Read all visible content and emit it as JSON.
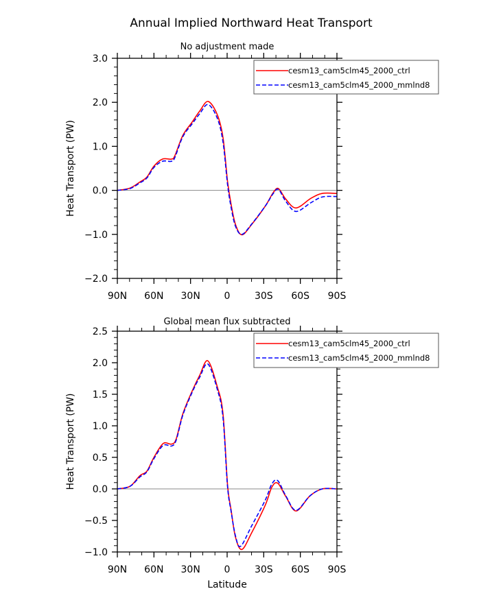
{
  "title": "Annual Implied Northward Heat Transport",
  "chart_data": [
    {
      "type": "line",
      "subtitle": "No adjustment made",
      "xlabel": "",
      "ylabel": "Heat Transport (PW)",
      "xlim": [
        90,
        -90
      ],
      "ylim": [
        -2.0,
        3.0
      ],
      "xticks": [
        90,
        60,
        30,
        0,
        -30,
        -60,
        -90
      ],
      "xtick_labels": [
        "90N",
        "60N",
        "30N",
        "0",
        "30S",
        "60S",
        "90S"
      ],
      "yticks": [
        -2.0,
        -1.0,
        0.0,
        1.0,
        2.0,
        3.0
      ],
      "ytick_labels": [
        "−2.0",
        "−1.0",
        "0.0",
        "1.0",
        "2.0",
        "3.0"
      ],
      "zero_line": true,
      "legend": "top-right",
      "series": [
        {
          "name": "cesm13_cam5clm45_2000_ctrl",
          "color": "#ff0000",
          "style": "solid",
          "x": [
            90,
            79.7,
            71.5,
            65.8,
            60,
            53,
            45.6,
            42.8,
            36.3,
            28.7,
            22.5,
            15.6,
            8.1,
            3.4,
            -0.3,
            -3.2,
            -6.9,
            -12.1,
            -20,
            -31.2,
            -37.8,
            -42.1,
            -48.1,
            -56.5,
            -68.7,
            -78,
            -90
          ],
          "y": [
            0,
            0.05,
            0.19,
            0.3,
            0.55,
            0.71,
            0.71,
            0.79,
            1.25,
            1.55,
            1.8,
            2.02,
            1.72,
            1.2,
            0.21,
            -0.31,
            -0.78,
            -1.01,
            -0.78,
            -0.36,
            -0.05,
            0.04,
            -0.2,
            -0.4,
            -0.18,
            -0.07,
            -0.07
          ]
        },
        {
          "name": "cesm13_cam5clm45_2000_mmlnd8",
          "color": "#0000ff",
          "style": "dashed",
          "x": [
            90,
            79.7,
            71.5,
            65.8,
            60,
            53,
            45.6,
            42.8,
            36.3,
            28.7,
            22.5,
            15.6,
            8.1,
            3.4,
            -0.3,
            -3.2,
            -6.9,
            -12.1,
            -20,
            -31.2,
            -37.8,
            -42.1,
            -48.1,
            -56.5,
            -68.7,
            -78,
            -90
          ],
          "y": [
            0,
            0.04,
            0.17,
            0.28,
            0.52,
            0.66,
            0.66,
            0.75,
            1.22,
            1.51,
            1.74,
            1.95,
            1.64,
            1.1,
            0.14,
            -0.38,
            -0.82,
            -1.0,
            -0.77,
            -0.36,
            -0.07,
            0.02,
            -0.25,
            -0.48,
            -0.28,
            -0.15,
            -0.14
          ]
        }
      ]
    },
    {
      "type": "line",
      "subtitle": "Global mean flux subtracted",
      "xlabel": "Latitude",
      "ylabel": "Heat Transport (PW)",
      "xlim": [
        90,
        -90
      ],
      "ylim": [
        -1.0,
        2.5
      ],
      "xticks": [
        90,
        60,
        30,
        0,
        -30,
        -60,
        -90
      ],
      "xtick_labels": [
        "90N",
        "60N",
        "30N",
        "0",
        "30S",
        "60S",
        "90S"
      ],
      "yticks": [
        -1.0,
        -0.5,
        0.0,
        0.5,
        1.0,
        1.5,
        2.0,
        2.5
      ],
      "ytick_labels": [
        "−1.0",
        "−0.5",
        "0.0",
        "0.5",
        "1.0",
        "1.5",
        "2.0",
        "2.5"
      ],
      "zero_line": true,
      "legend": "top-right",
      "series": [
        {
          "name": "cesm13_cam5clm45_2000_ctrl",
          "color": "#ff0000",
          "style": "solid",
          "x": [
            90,
            79.7,
            71.5,
            65.8,
            60,
            52.4,
            45.6,
            41.8,
            36.3,
            28.7,
            22.5,
            15.8,
            8.1,
            3.4,
            -0.3,
            -3.2,
            -6.9,
            -12.1,
            -20,
            -31.2,
            -36.7,
            -41.5,
            -48.1,
            -56.5,
            -67.9,
            -78,
            -90
          ],
          "y": [
            0,
            0.04,
            0.21,
            0.28,
            0.5,
            0.72,
            0.71,
            0.79,
            1.19,
            1.55,
            1.8,
            2.03,
            1.62,
            1.19,
            0.07,
            -0.33,
            -0.77,
            -0.96,
            -0.7,
            -0.26,
            0.03,
            0.09,
            -0.12,
            -0.35,
            -0.11,
            0,
            0
          ]
        },
        {
          "name": "cesm13_cam5clm45_2000_mmlnd8",
          "color": "#0000ff",
          "style": "dashed",
          "x": [
            90,
            79.7,
            71.5,
            65.8,
            60,
            52.4,
            45.6,
            41.8,
            36.3,
            28.7,
            22.5,
            15.8,
            8.1,
            3.4,
            -0.3,
            -3.2,
            -6.9,
            -11,
            -20,
            -31.2,
            -36.7,
            -41.5,
            -48.1,
            -56.5,
            -67.9,
            -78,
            -90
          ],
          "y": [
            0,
            0.04,
            0.19,
            0.27,
            0.48,
            0.69,
            0.68,
            0.77,
            1.17,
            1.53,
            1.77,
            1.98,
            1.58,
            1.13,
            0.04,
            -0.35,
            -0.75,
            -0.91,
            -0.59,
            -0.18,
            0.08,
            0.13,
            -0.11,
            -0.34,
            -0.11,
            0,
            0
          ]
        }
      ]
    }
  ]
}
